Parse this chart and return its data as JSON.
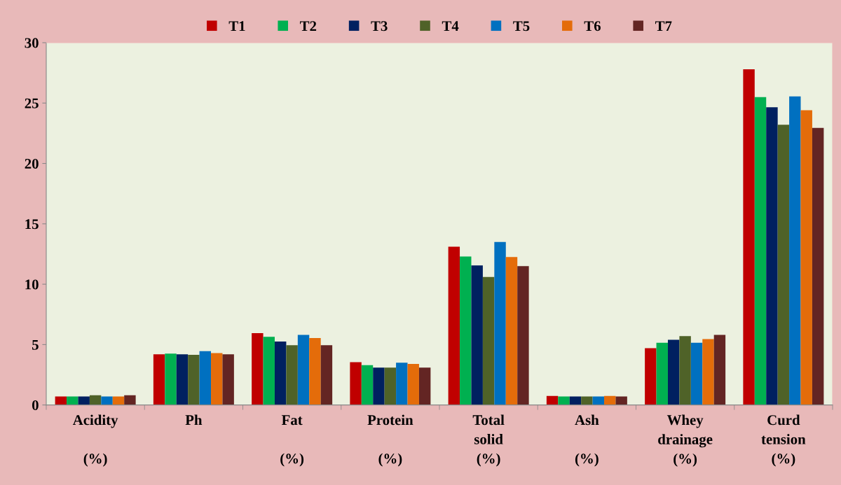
{
  "chart_data": {
    "type": "bar",
    "categories": [
      "Acidity\n\n(%)",
      "Ph",
      "Fat\n\n(%)",
      "Protein\n\n(%)",
      "Total\nsolid\n(%)",
      "Ash\n\n(%)",
      "Whey\ndrainage\n(%)",
      "Curd\ntension\n(%)"
    ],
    "series": [
      {
        "name": "T1",
        "color": "#c00000",
        "values": [
          0.7,
          4.2,
          5.95,
          3.55,
          13.1,
          0.75,
          4.7,
          27.8
        ]
      },
      {
        "name": "T2",
        "color": "#00b050",
        "values": [
          0.7,
          4.25,
          5.65,
          3.3,
          12.3,
          0.7,
          5.15,
          25.5
        ]
      },
      {
        "name": "T3",
        "color": "#002060",
        "values": [
          0.7,
          4.2,
          5.25,
          3.1,
          11.55,
          0.7,
          5.4,
          24.65
        ]
      },
      {
        "name": "T4",
        "color": "#4f6228",
        "values": [
          0.8,
          4.15,
          4.95,
          3.1,
          10.6,
          0.7,
          5.7,
          23.2
        ]
      },
      {
        "name": "T5",
        "color": "#0070c0",
        "values": [
          0.7,
          4.45,
          5.8,
          3.5,
          13.5,
          0.7,
          5.15,
          25.55
        ]
      },
      {
        "name": "T6",
        "color": "#e46c0a",
        "values": [
          0.7,
          4.3,
          5.55,
          3.4,
          12.25,
          0.75,
          5.45,
          24.4
        ]
      },
      {
        "name": "T7",
        "color": "#632523",
        "values": [
          0.8,
          4.2,
          4.95,
          3.1,
          11.5,
          0.7,
          5.8,
          22.95
        ]
      }
    ],
    "ylim": [
      0,
      30
    ],
    "yticks": [
      0,
      5,
      10,
      15,
      20,
      25,
      30
    ],
    "grid": false,
    "legend": "top"
  }
}
